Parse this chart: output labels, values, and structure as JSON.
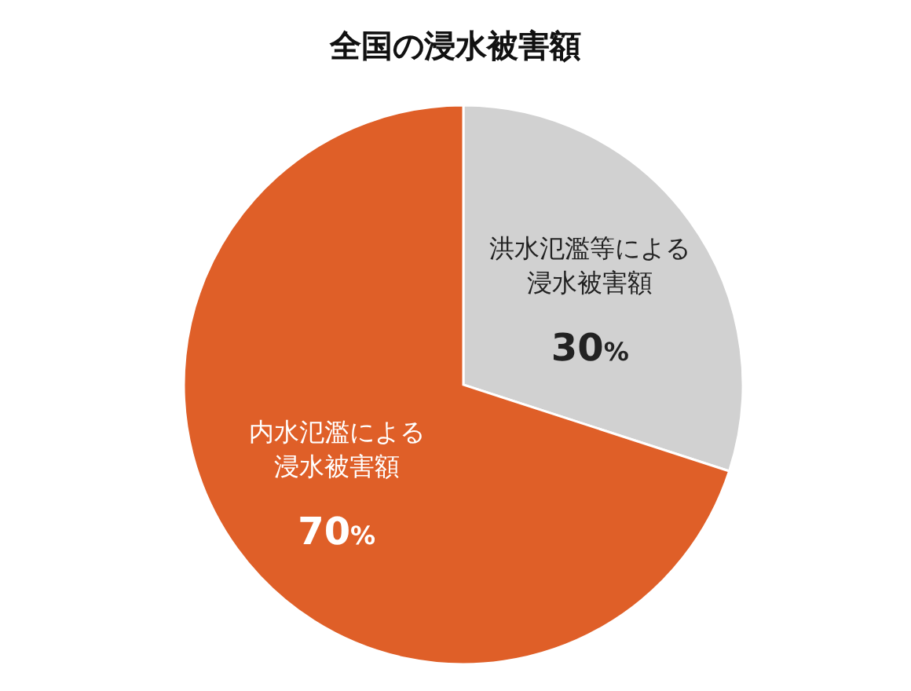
{
  "chart_data": {
    "type": "pie",
    "title": "全国の浸水被害額",
    "categories": [
      "洪水氾濫等による浸水被害額",
      "内水氾濫による浸水被害額"
    ],
    "values": [
      30,
      70
    ],
    "colors": [
      "#d1d1d1",
      "#df5f28"
    ],
    "value_labels": [
      "30%",
      "70%"
    ]
  }
}
